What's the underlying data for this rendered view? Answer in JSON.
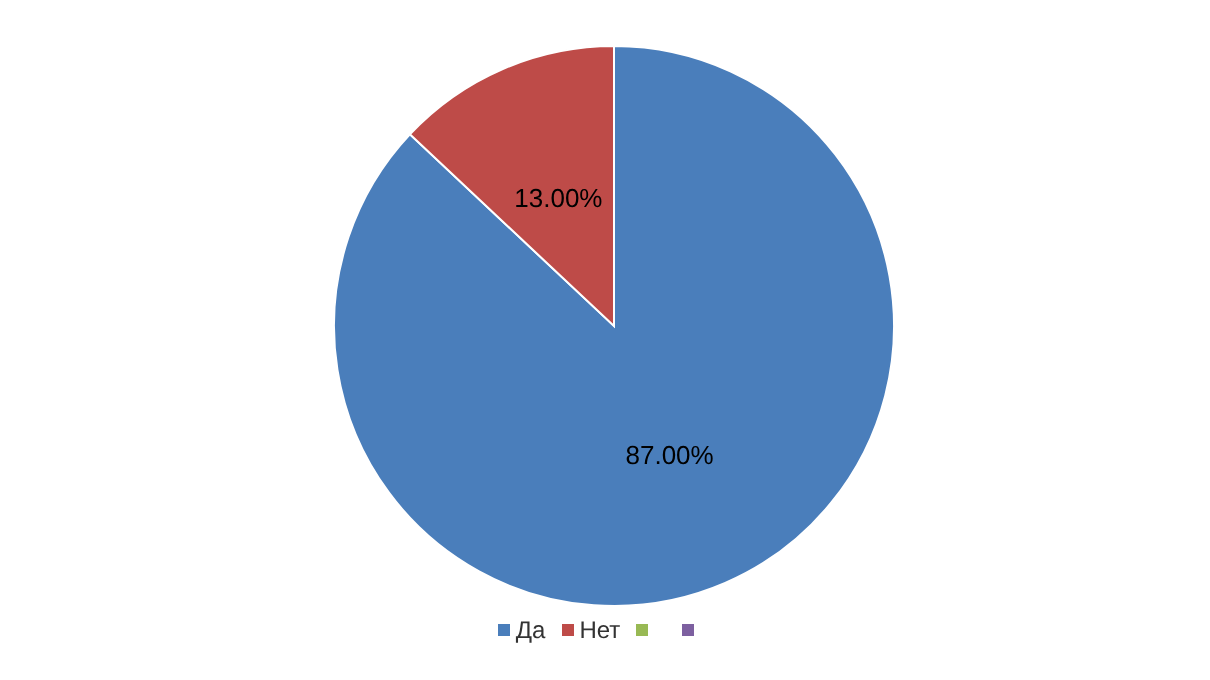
{
  "chart_data": {
    "type": "pie",
    "categories": [
      "Да",
      "Нет",
      null,
      null
    ],
    "values": [
      87,
      13,
      0,
      0
    ],
    "colors": [
      "#4a7ebb",
      "#be4b48",
      "#98b954",
      "#7d60a0"
    ],
    "value_labels": [
      "87.00%",
      "13.00%",
      null,
      null
    ],
    "legend": "bottom"
  }
}
